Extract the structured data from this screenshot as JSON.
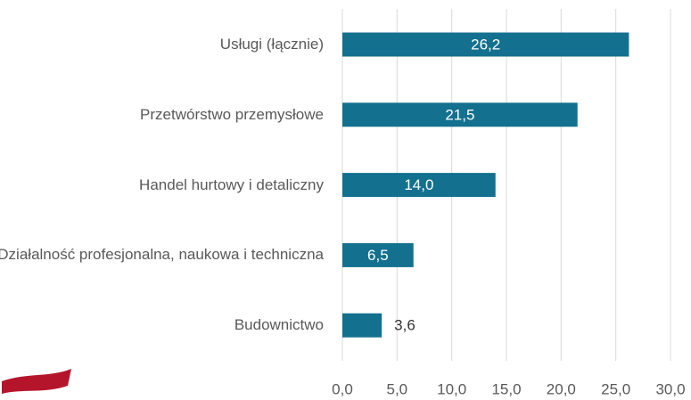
{
  "chart_data": {
    "type": "bar",
    "orientation": "horizontal",
    "categories": [
      "Usługi (łącznie)",
      "Przetwórstwo przemysłowe",
      "Handel hurtowy i detaliczny",
      "Działalność profesjonalna, naukowa i techniczna",
      "Budownictwo"
    ],
    "values": [
      26.2,
      21.5,
      14.0,
      6.5,
      3.6
    ],
    "value_labels": [
      "26,2",
      "21,5",
      "14,0",
      "6,5",
      "3,6"
    ],
    "color": "#13708f",
    "xlim": [
      0,
      30
    ],
    "xticks": [
      {
        "value": 0,
        "label": "0,0"
      },
      {
        "value": 5,
        "label": "5,0"
      },
      {
        "value": 10,
        "label": "10,0"
      },
      {
        "value": 15,
        "label": "15,0"
      },
      {
        "value": 20,
        "label": "20,0"
      },
      {
        "value": 25,
        "label": "25,0"
      },
      {
        "value": 30,
        "label": "30,0"
      }
    ],
    "grid": true
  }
}
